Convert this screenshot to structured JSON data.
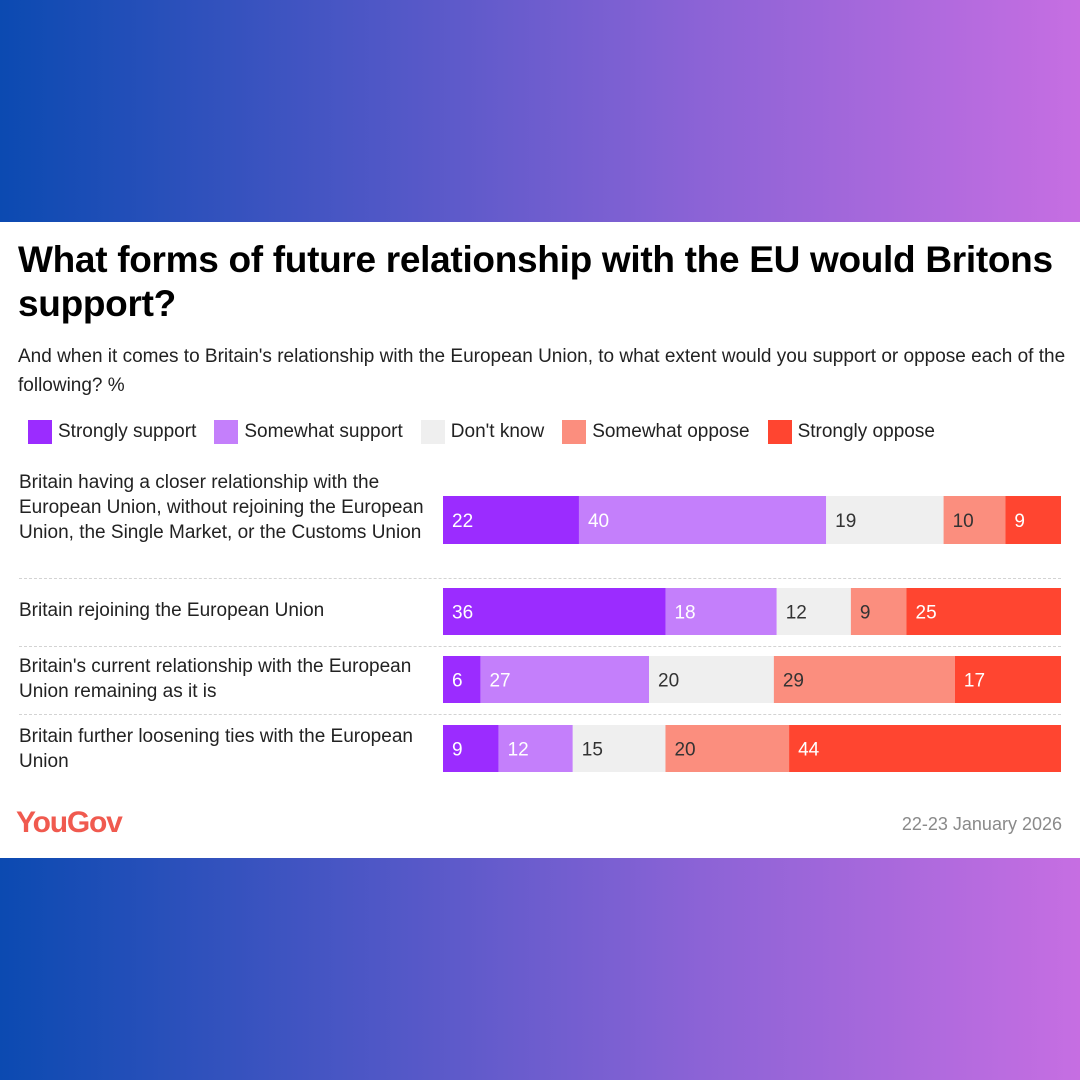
{
  "title": "What forms of future relationship with the EU would Britons support?",
  "subtitle": "And when it comes to Britain's relationship with the European Union, to what extent would you support or oppose each of the following? %",
  "brand": "YouGov",
  "date": "22-23 January 2026",
  "chart_data": {
    "type": "bar",
    "stacked": true,
    "orientation": "horizontal",
    "unit": "%",
    "title": "What forms of future relationship with the EU would Britons support?",
    "categories": [
      "Britain having a closer relationship with the European Union, without rejoining the European Union, the Single Market, or the Customs Union",
      "Britain rejoining the European Union",
      "Britain's current relationship with the European Union remaining as it is",
      "Britain further loosening ties with the European Union"
    ],
    "series": [
      {
        "name": "Strongly support",
        "color": "#9b2cff",
        "label_color": "#ffffff",
        "values": [
          22,
          36,
          6,
          9
        ]
      },
      {
        "name": "Somewhat support",
        "color": "#c47ffb",
        "label_color": "#ffffff",
        "values": [
          40,
          18,
          27,
          12
        ]
      },
      {
        "name": "Don't know",
        "color": "#efefef",
        "label_color": "#333333",
        "values": [
          19,
          12,
          20,
          15
        ]
      },
      {
        "name": "Somewhat oppose",
        "color": "#fb8e7e",
        "label_color": "#333333",
        "values": [
          10,
          9,
          29,
          20
        ]
      },
      {
        "name": "Strongly oppose",
        "color": "#ff4530",
        "label_color": "#ffffff",
        "values": [
          9,
          25,
          17,
          44
        ]
      }
    ],
    "legend": "top"
  }
}
